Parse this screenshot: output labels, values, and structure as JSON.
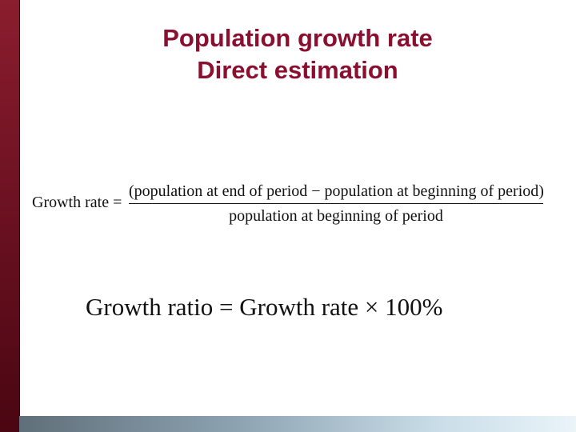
{
  "slide": {
    "title_line1": "Population growth rate",
    "title_line2": "Direct estimation",
    "formula1": {
      "lhs": "Growth rate =",
      "numerator": "(population at end of period  −  population at beginning of period)",
      "denominator": "population at beginning of period"
    },
    "formula2": "Growth ratio = Growth rate × 100%"
  },
  "colors": {
    "title": "#8b1030",
    "left_bar": "#6e1222",
    "bottom_bar_start": "#5f6f7a",
    "bottom_bar_end": "#eaf4f9"
  }
}
